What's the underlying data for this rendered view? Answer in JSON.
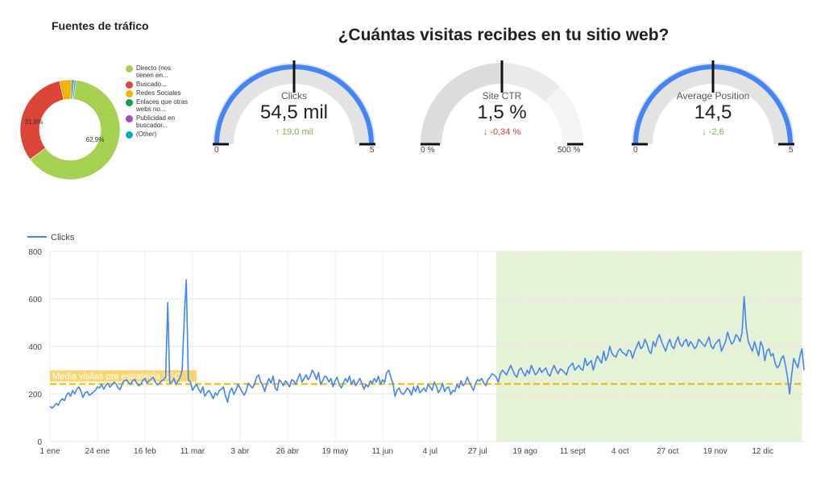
{
  "traffic_sources": {
    "title": "Fuentes de tráfico",
    "legend": [
      {
        "label": "Directo (nos tienen en...",
        "color": "#a6d052"
      },
      {
        "label": "Buscado...",
        "color": "#db4437"
      },
      {
        "label": "Redes Sociales",
        "color": "#f4b400"
      },
      {
        "label": "Enlaces que otras webs no...",
        "color": "#0f9d58"
      },
      {
        "label": "Publicidad en buscador...",
        "color": "#ab47bc"
      },
      {
        "label": "(Other)",
        "color": "#00acc1"
      }
    ],
    "slice_labels": {
      "directo": "62,9%",
      "buscador": "31,8%"
    }
  },
  "main_title": "¿Cuántas visitas recibes en tu sitio web?",
  "gauges": [
    {
      "label": "Clicks",
      "value": "54,5 mil",
      "delta": "19,0 mil",
      "delta_dir": "up",
      "delta_color": "#7cb342",
      "min": "0",
      "max": "5",
      "fill": 1.0,
      "target": 0.5,
      "arc_color": "#4285f4"
    },
    {
      "label": "Site CTR",
      "value": "1,5 %",
      "delta": "-0,34 %",
      "delta_dir": "down",
      "delta_color": "#e53935",
      "min": "0 %",
      "max": "500 %",
      "fill": 0.003,
      "target": 0.5,
      "arc_color": "#4285f4"
    },
    {
      "label": "Average Position",
      "value": "14,5",
      "delta": "-2,6",
      "delta_dir": "down",
      "delta_color": "#7cb342",
      "min": "0",
      "max": "5",
      "fill": 1.0,
      "target": 0.5,
      "arc_color": "#4285f4"
    }
  ],
  "chart_data": {
    "type": "line",
    "legend": "Clicks",
    "series_color": "#4285f4",
    "ylim": [
      0,
      800
    ],
    "yticks": [
      "0",
      "200",
      "400",
      "600",
      "800"
    ],
    "xticks": [
      "1 ene",
      "24 ene",
      "16 feb",
      "11 mar",
      "3 abr",
      "26 abr",
      "19 may",
      "11 jun",
      "4 jul",
      "27 jul",
      "19 ago",
      "11 sept",
      "4 oct",
      "27 oct",
      "19 nov",
      "12 dic"
    ],
    "xtick_days": [
      0,
      23,
      46,
      69,
      92,
      115,
      138,
      161,
      184,
      207,
      230,
      253,
      276,
      299,
      322,
      345
    ],
    "reference_line": {
      "label": "Media visitas pre estrategia SEO",
      "value": 242,
      "color": "#f4b400"
    },
    "highlight_range_days": [
      216,
      364
    ],
    "highlight_color": "#e6f2d5",
    "values": [
      148,
      140,
      148,
      160,
      152,
      170,
      180,
      172,
      195,
      205,
      190,
      215,
      200,
      220,
      230,
      212,
      185,
      205,
      210,
      195,
      200,
      208,
      215,
      230,
      225,
      240,
      220,
      235,
      245,
      228,
      238,
      250,
      242,
      225,
      218,
      245,
      255,
      260,
      248,
      240,
      255,
      262,
      245,
      235,
      240,
      258,
      265,
      245,
      255,
      262,
      270,
      250,
      238,
      245,
      255,
      260,
      270,
      585,
      245,
      250,
      265,
      240,
      255,
      270,
      300,
      520,
      680,
      260,
      250,
      215,
      230,
      240,
      220,
      205,
      230,
      190,
      205,
      215,
      200,
      180,
      205,
      195,
      215,
      220,
      230,
      190,
      165,
      210,
      225,
      198,
      215,
      240,
      225,
      208,
      195,
      212,
      245,
      235,
      225,
      240,
      270,
      280,
      250,
      235,
      210,
      245,
      265,
      245,
      275,
      225,
      215,
      260,
      250,
      235,
      255,
      245,
      230,
      260,
      255,
      240,
      265,
      285,
      250,
      265,
      280,
      260,
      275,
      300,
      285,
      260,
      290,
      240,
      255,
      275,
      270,
      250,
      265,
      230,
      255,
      270,
      240,
      225,
      245,
      265,
      250,
      275,
      240,
      260,
      235,
      250,
      265,
      245,
      220,
      240,
      230,
      255,
      245,
      265,
      250,
      275,
      240,
      260,
      248,
      290,
      300,
      270,
      245,
      190,
      215,
      225,
      205,
      198,
      210,
      225,
      215,
      195,
      230,
      210,
      235,
      205,
      215,
      225,
      210,
      240,
      230,
      215,
      250,
      235,
      205,
      220,
      245,
      210,
      225,
      230,
      198,
      215,
      210,
      240,
      225,
      255,
      235,
      245,
      270,
      250,
      230,
      215,
      245,
      260,
      255,
      265,
      245,
      235,
      260,
      270,
      285,
      280,
      270,
      250,
      285,
      300,
      290,
      280,
      300,
      320,
      300,
      280,
      270,
      300,
      310,
      290,
      275,
      300,
      285,
      320,
      300,
      280,
      290,
      310,
      290,
      300,
      310,
      285,
      275,
      300,
      320,
      300,
      285,
      305,
      300,
      290,
      280,
      310,
      320,
      330,
      300,
      310,
      320,
      305,
      300,
      350,
      320,
      330,
      340,
      300,
      335,
      360,
      345,
      330,
      380,
      340,
      360,
      400,
      370,
      360,
      355,
      380,
      390,
      375,
      370,
      360,
      385,
      380,
      350,
      380,
      400,
      420,
      390,
      400,
      430,
      410,
      380,
      370,
      420,
      400,
      430,
      450,
      420,
      400,
      380,
      410,
      430,
      400,
      390,
      420,
      440,
      410,
      400,
      420,
      430,
      400,
      420,
      410,
      390,
      400,
      430,
      420,
      410,
      400,
      420,
      440,
      400,
      390,
      410,
      420,
      430,
      380,
      400,
      420,
      460,
      430,
      410,
      420,
      450,
      440,
      420,
      460,
      610,
      480,
      420,
      400,
      380,
      420,
      390,
      360,
      420,
      400,
      340,
      380,
      390,
      360,
      370,
      330,
      310,
      320,
      350,
      360,
      320,
      270,
      200,
      280,
      350,
      330,
      310,
      360,
      390,
      300
    ]
  }
}
